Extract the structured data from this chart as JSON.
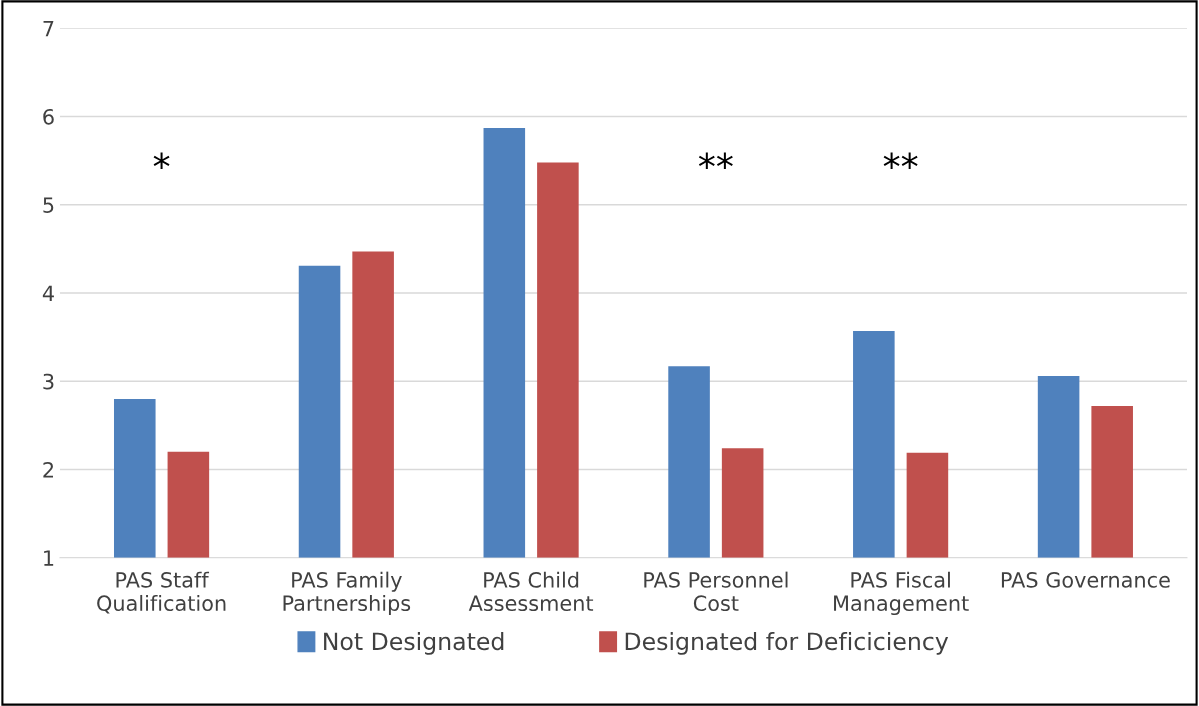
{
  "chart_data": {
    "type": "bar",
    "categories": [
      "PAS Staff\nQualification",
      "PAS Family\nPartnerships",
      "PAS Child\nAssessment",
      "PAS Personnel\nCost",
      "PAS Fiscal\nManagement",
      "PAS Governance"
    ],
    "series": [
      {
        "name": "Not Designated",
        "color": "#4f81bd",
        "values": [
          2.8,
          4.31,
          5.87,
          3.17,
          3.57,
          3.06
        ]
      },
      {
        "name": "Designated for Deficiciency",
        "color": "#c0504d",
        "values": [
          2.2,
          4.47,
          5.48,
          2.24,
          2.19,
          2.72
        ]
      }
    ],
    "ylim": [
      1,
      7
    ],
    "yticks": [
      1,
      2,
      3,
      4,
      5,
      6,
      7
    ],
    "grid": "y",
    "legend": "bottom",
    "annotations": [
      "*",
      "**",
      "**"
    ]
  }
}
